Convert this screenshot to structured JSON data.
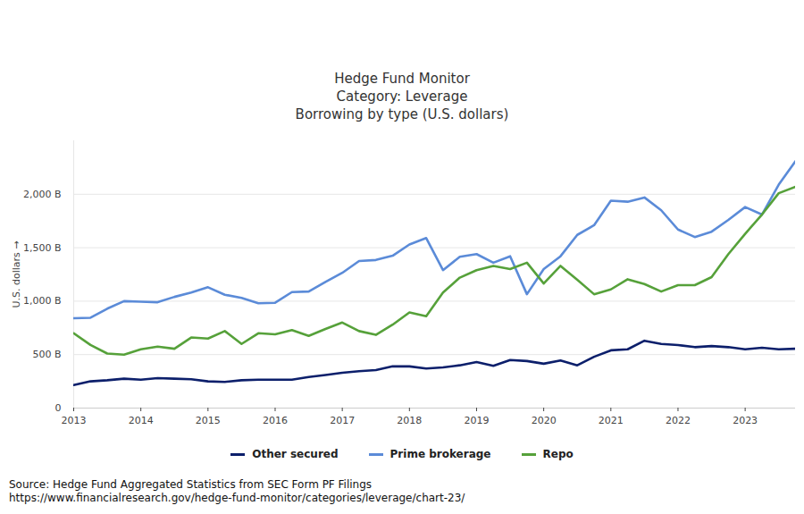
{
  "chart_data": {
    "type": "line",
    "title": "Hedge Fund Monitor",
    "subtitle": [
      "Category: Leverage",
      "Borrowing by type (U.S. dollars)"
    ],
    "ylabel": "U.S. dollars",
    "caption": [
      "Source: Hedge Fund Aggregated Statistics from SEC Form PF Filings",
      "https://www.financialresearch.gov/hedge-fund-monitor/categories/leverage/chart-23/"
    ],
    "x": [
      2013,
      2013.25,
      2013.5,
      2013.75,
      2014,
      2014.25,
      2014.5,
      2014.75,
      2015,
      2015.25,
      2015.5,
      2015.75,
      2016,
      2016.25,
      2016.5,
      2016.75,
      2017,
      2017.25,
      2017.5,
      2017.75,
      2018,
      2018.25,
      2018.5,
      2018.75,
      2019,
      2019.25,
      2019.5,
      2019.75,
      2020,
      2020.25,
      2020.5,
      2020.75,
      2021,
      2021.25,
      2021.5,
      2021.75,
      2022,
      2022.25,
      2022.5,
      2022.75,
      2023,
      2023.25,
      2023.5,
      2023.75
    ],
    "series": [
      {
        "name": "Other secured",
        "color": "#0c1f6b",
        "values": [
          215,
          250,
          260,
          275,
          265,
          280,
          275,
          270,
          250,
          245,
          260,
          265,
          265,
          265,
          290,
          310,
          330,
          345,
          355,
          390,
          390,
          370,
          380,
          400,
          430,
          395,
          450,
          440,
          415,
          445,
          400,
          480,
          540,
          550,
          630,
          600,
          590,
          570,
          580,
          570,
          550,
          565,
          550,
          555
        ]
      },
      {
        "name": "Prime brokerage",
        "color": "#5b8bd8",
        "values": [
          840,
          845,
          930,
          1000,
          995,
          990,
          1040,
          1080,
          1130,
          1060,
          1030,
          980,
          985,
          1085,
          1090,
          1180,
          1265,
          1375,
          1385,
          1425,
          1530,
          1590,
          1290,
          1415,
          1440,
          1360,
          1420,
          1065,
          1300,
          1420,
          1620,
          1710,
          1940,
          1930,
          1970,
          1850,
          1670,
          1600,
          1650,
          1760,
          1880,
          1810,
          2090,
          2310
        ]
      },
      {
        "name": "Repo",
        "color": "#56a13a",
        "values": [
          700,
          590,
          510,
          500,
          550,
          575,
          555,
          660,
          650,
          720,
          600,
          700,
          690,
          730,
          675,
          740,
          800,
          720,
          685,
          780,
          895,
          860,
          1080,
          1220,
          1290,
          1330,
          1300,
          1360,
          1165,
          1330,
          1200,
          1065,
          1110,
          1205,
          1160,
          1090,
          1150,
          1150,
          1225,
          1440,
          1630,
          1810,
          2010,
          2070
        ]
      }
    ],
    "xlim": [
      2013,
      2023.75
    ],
    "xticks": [
      2013,
      2014,
      2015,
      2016,
      2017,
      2018,
      2019,
      2020,
      2021,
      2022,
      2023
    ],
    "ylim": [
      0,
      2500
    ],
    "yticks": [
      0,
      {
        "value": 500,
        "label": "500 B"
      },
      {
        "value": 1000,
        "label": "1,000 B"
      },
      {
        "value": 1500,
        "label": "1,500 B"
      },
      {
        "value": 2000,
        "label": "2,000 B"
      }
    ],
    "grid": true,
    "legend": "bottom"
  }
}
